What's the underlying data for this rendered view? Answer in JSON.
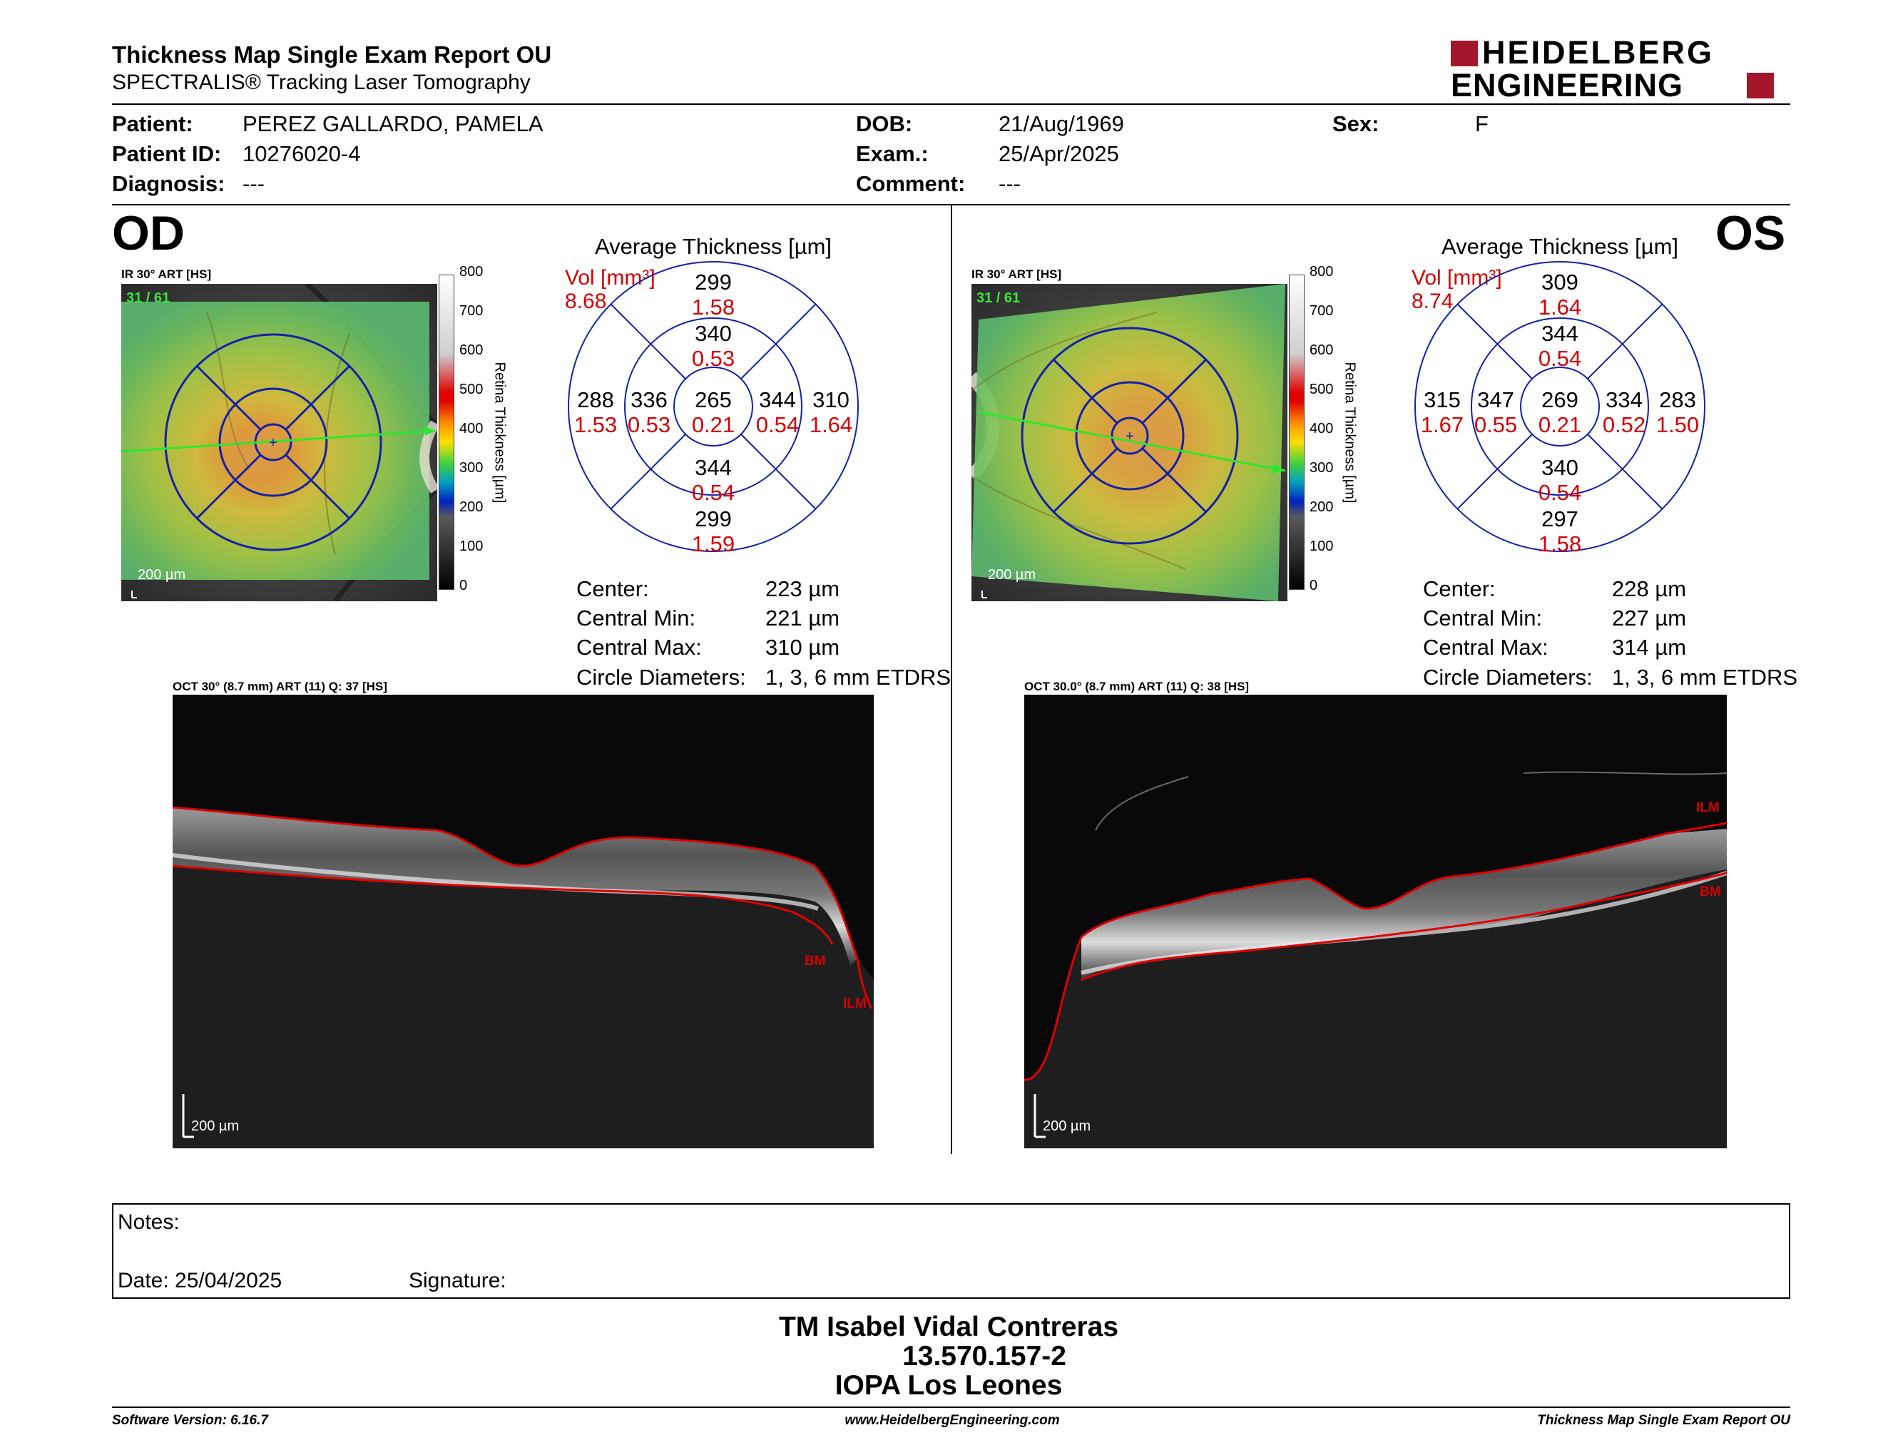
{
  "header": {
    "title": "Thickness Map Single Exam Report OU",
    "subtitle": "SPECTRALIS® Tracking Laser Tomography",
    "logo_line1": "HEIDELBERG",
    "logo_line2": "ENGINEERING"
  },
  "patient": {
    "patient_label": "Patient:",
    "patient_value": "PEREZ GALLARDO, PAMELA",
    "id_label": "Patient ID:",
    "id_value": "10276020-4",
    "diag_label": "Diagnosis:",
    "diag_value": "---",
    "dob_label": "DOB:",
    "dob_value": "21/Aug/1969",
    "exam_label": "Exam.:",
    "exam_value": "25/Apr/2025",
    "comment_label": "Comment:",
    "comment_value": "---",
    "sex_label": "Sex:",
    "sex_value": "F"
  },
  "od": {
    "eye": "OD",
    "ir_label": "IR 30° ART [HS]",
    "frames": "31 / 61",
    "scale": "200 µm",
    "colorbar_ticks": [
      "800",
      "700",
      "600",
      "500",
      "400",
      "300",
      "200",
      "100",
      "0"
    ],
    "colorbar_title": "Retina Thickness [µm]",
    "avg_title": "Average Thickness [µm]",
    "vol_label": "Vol [mm³]",
    "vol_value": "8.68",
    "etdrs": {
      "outer_sup": {
        "t": "299",
        "v": "1.58"
      },
      "inner_sup": {
        "t": "340",
        "v": "0.53"
      },
      "center": {
        "t": "265",
        "v": "0.21"
      },
      "inner_inf": {
        "t": "344",
        "v": "0.54"
      },
      "outer_inf": {
        "t": "299",
        "v": "1.59"
      },
      "outer_left": {
        "t": "288",
        "v": "1.53"
      },
      "inner_left": {
        "t": "336",
        "v": "0.53"
      },
      "inner_right": {
        "t": "344",
        "v": "0.54"
      },
      "outer_right": {
        "t": "310",
        "v": "1.64"
      }
    },
    "stats": {
      "center_label": "Center:",
      "center_value": "223 µm",
      "min_label": "Central Min:",
      "min_value": "221 µm",
      "max_label": "Central Max:",
      "max_value": "310 µm",
      "diam_label": "Circle Diameters:",
      "diam_value": "1, 3, 6 mm ETDRS"
    },
    "oct_label": "OCT 30° (8.7 mm) ART (11) Q: 37 [HS]",
    "oct_scale": "200 µm",
    "bm": "BM",
    "ilm": "ILM"
  },
  "os": {
    "eye": "OS",
    "ir_label": "IR 30° ART [HS]",
    "frames": "31 / 61",
    "scale": "200 µm",
    "colorbar_ticks": [
      "800",
      "700",
      "600",
      "500",
      "400",
      "300",
      "200",
      "100",
      "0"
    ],
    "colorbar_title": "Retina Thickness [µm]",
    "avg_title": "Average Thickness [µm]",
    "vol_label": "Vol [mm³]",
    "vol_value": "8.74",
    "etdrs": {
      "outer_sup": {
        "t": "309",
        "v": "1.64"
      },
      "inner_sup": {
        "t": "344",
        "v": "0.54"
      },
      "center": {
        "t": "269",
        "v": "0.21"
      },
      "inner_inf": {
        "t": "340",
        "v": "0.54"
      },
      "outer_inf": {
        "t": "297",
        "v": "1.58"
      },
      "outer_left": {
        "t": "315",
        "v": "1.67"
      },
      "inner_left": {
        "t": "347",
        "v": "0.55"
      },
      "inner_right": {
        "t": "334",
        "v": "0.52"
      },
      "outer_right": {
        "t": "283",
        "v": "1.50"
      }
    },
    "stats": {
      "center_label": "Center:",
      "center_value": "228 µm",
      "min_label": "Central Min:",
      "min_value": "227 µm",
      "max_label": "Central Max:",
      "max_value": "314 µm",
      "diam_label": "Circle Diameters:",
      "diam_value": "1, 3, 6 mm ETDRS"
    },
    "oct_label": "OCT 30.0° (8.7 mm) ART (11) Q: 38 [HS]",
    "oct_scale": "200 µm",
    "bm": "BM",
    "ilm": "ILM"
  },
  "notes": {
    "notes_label": "Notes:",
    "date_label": "Date: 25/04/2025",
    "signature_label": "Signature:"
  },
  "signature": {
    "name": "TM Isabel Vidal Contreras",
    "id": "13.570.157-2",
    "place": "IOPA Los Leones"
  },
  "footer": {
    "software": "Software Version: 6.16.7",
    "website": "www.HeidelbergEngineering.com",
    "report": "Thickness Map Single Exam Report OU"
  },
  "colors": {
    "red": "#d40000",
    "logo_red": "#a3172a",
    "etdrs_blue": "#1420a8"
  }
}
